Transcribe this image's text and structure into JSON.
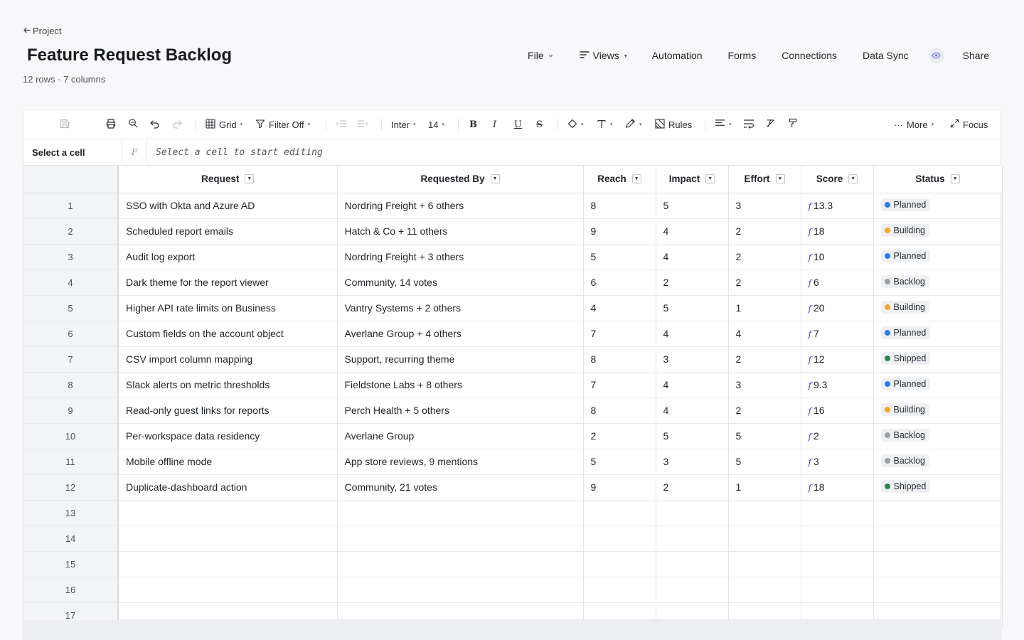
{
  "header": {
    "back_label": "Project",
    "title": "Feature Request Backlog",
    "subtitle": "12 rows · 7 columns"
  },
  "nav": {
    "file": "File",
    "views": "Views",
    "automation": "Automation",
    "forms": "Forms",
    "connections": "Connections",
    "data_sync": "Data Sync",
    "share": "Share"
  },
  "toolbar": {
    "view": "Grid",
    "filter": "Filter Off",
    "font": "Inter",
    "font_size": "14",
    "bold": "B",
    "italic": "I",
    "underline": "U",
    "strike": "S",
    "rules": "Rules",
    "more": "More",
    "focus": "Focus"
  },
  "formula_bar": {
    "cell_ref": "Select a cell",
    "fx": "F",
    "placeholder": "Select a cell to start editing"
  },
  "columns": [
    "Request",
    "Requested By",
    "Reach",
    "Impact",
    "Effort",
    "Score",
    "Status"
  ],
  "status_colors": {
    "Planned": "#2f7bf5",
    "Building": "#f5a623",
    "Backlog": "#9aa0a8",
    "Shipped": "#1f8a4c"
  },
  "rows": [
    {
      "num": "1",
      "request": "SSO with Okta and Azure AD",
      "requested_by": "Nordring Freight + 6 others",
      "reach": "8",
      "impact": "5",
      "effort": "3",
      "score": "13.3",
      "status": "Planned"
    },
    {
      "num": "2",
      "request": "Scheduled report emails",
      "requested_by": "Hatch & Co + 11 others",
      "reach": "9",
      "impact": "4",
      "effort": "2",
      "score": "18",
      "status": "Building"
    },
    {
      "num": "3",
      "request": "Audit log export",
      "requested_by": "Nordring Freight + 3 others",
      "reach": "5",
      "impact": "4",
      "effort": "2",
      "score": "10",
      "status": "Planned"
    },
    {
      "num": "4",
      "request": "Dark theme for the report viewer",
      "requested_by": "Community, 14 votes",
      "reach": "6",
      "impact": "2",
      "effort": "2",
      "score": "6",
      "status": "Backlog"
    },
    {
      "num": "5",
      "request": "Higher API rate limits on Business",
      "requested_by": "Vantry Systems + 2 others",
      "reach": "4",
      "impact": "5",
      "effort": "1",
      "score": "20",
      "status": "Building"
    },
    {
      "num": "6",
      "request": "Custom fields on the account object",
      "requested_by": "Averlane Group + 4 others",
      "reach": "7",
      "impact": "4",
      "effort": "4",
      "score": "7",
      "status": "Planned"
    },
    {
      "num": "7",
      "request": "CSV import column mapping",
      "requested_by": "Support, recurring theme",
      "reach": "8",
      "impact": "3",
      "effort": "2",
      "score": "12",
      "status": "Shipped"
    },
    {
      "num": "8",
      "request": "Slack alerts on metric thresholds",
      "requested_by": "Fieldstone Labs + 8 others",
      "reach": "7",
      "impact": "4",
      "effort": "3",
      "score": "9.3",
      "status": "Planned"
    },
    {
      "num": "9",
      "request": "Read-only guest links for reports",
      "requested_by": "Perch Health + 5 others",
      "reach": "8",
      "impact": "4",
      "effort": "2",
      "score": "16",
      "status": "Building"
    },
    {
      "num": "10",
      "request": "Per-workspace data residency",
      "requested_by": "Averlane Group",
      "reach": "2",
      "impact": "5",
      "effort": "5",
      "score": "2",
      "status": "Backlog"
    },
    {
      "num": "11",
      "request": "Mobile offline mode",
      "requested_by": "App store reviews, 9 mentions",
      "reach": "5",
      "impact": "3",
      "effort": "5",
      "score": "3",
      "status": "Backlog"
    },
    {
      "num": "12",
      "request": "Duplicate-dashboard action",
      "requested_by": "Community, 21 votes",
      "reach": "9",
      "impact": "2",
      "effort": "1",
      "score": "18",
      "status": "Shipped"
    }
  ],
  "empty_rows": [
    "13",
    "14",
    "15",
    "16",
    "17"
  ]
}
